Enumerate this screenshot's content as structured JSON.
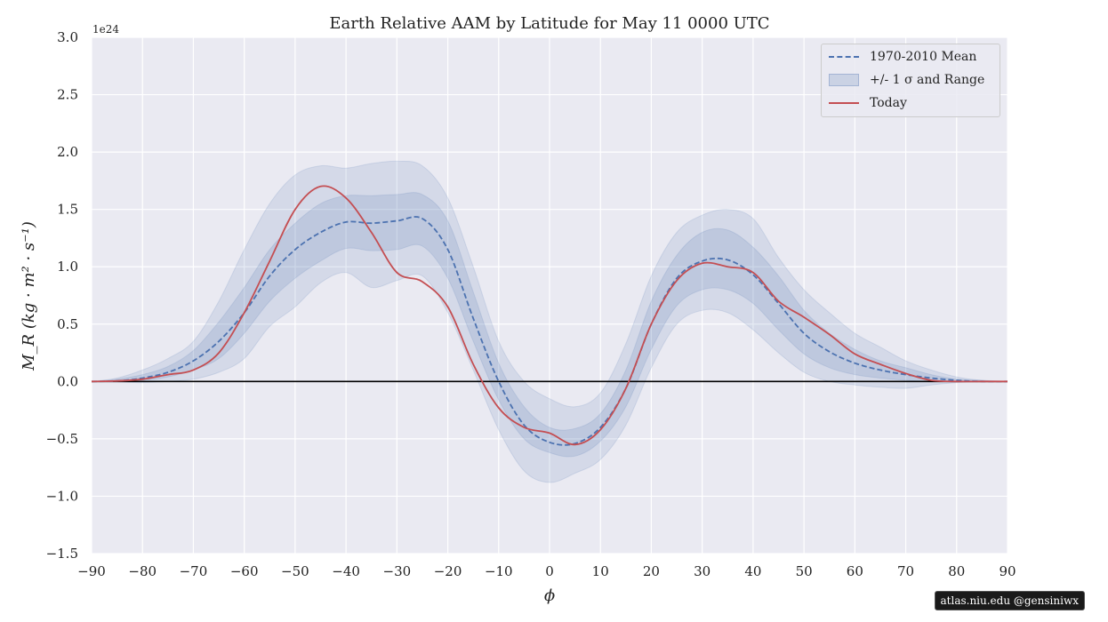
{
  "chart_data": {
    "type": "line",
    "title": "Earth Relative AAM by Latitude for May 11 0000 UTC",
    "xlabel": "ϕ",
    "ylabel": "M_R  (kg · m² · s⁻¹)",
    "y_multiplier": "1e24",
    "xlim": [
      -90,
      90
    ],
    "ylim": [
      -1.5,
      3.0
    ],
    "xticks": [
      "−90",
      "−80",
      "−70",
      "−60",
      "−50",
      "−40",
      "−30",
      "−20",
      "−10",
      "0",
      "10",
      "20",
      "30",
      "40",
      "50",
      "60",
      "70",
      "80",
      "90"
    ],
    "yticks": [
      "−1.5",
      "−1.0",
      "−0.5",
      "0.0",
      "0.5",
      "1.0",
      "1.5",
      "2.0",
      "2.5",
      "3.0"
    ],
    "grid": true,
    "legend_position": "top-right",
    "x": [
      -90,
      -85,
      -80,
      -75,
      -70,
      -65,
      -60,
      -55,
      -50,
      -45,
      -40,
      -35,
      -30,
      -25,
      -20,
      -15,
      -10,
      -5,
      0,
      5,
      10,
      15,
      20,
      25,
      30,
      35,
      40,
      45,
      50,
      55,
      60,
      65,
      70,
      75,
      80,
      85,
      90
    ],
    "series": [
      {
        "name": "1970-2010 Mean",
        "style": "dashed",
        "color": "#4c72b0",
        "values": [
          0.0,
          0.005,
          0.03,
          0.08,
          0.18,
          0.35,
          0.6,
          0.92,
          1.15,
          1.3,
          1.39,
          1.38,
          1.4,
          1.42,
          1.15,
          0.55,
          0.0,
          -0.38,
          -0.53,
          -0.54,
          -0.4,
          -0.06,
          0.5,
          0.9,
          1.05,
          1.06,
          0.93,
          0.68,
          0.42,
          0.26,
          0.16,
          0.1,
          0.06,
          0.03,
          0.01,
          0.0,
          0.0
        ]
      },
      {
        "name": "Today",
        "style": "solid",
        "color": "#c44e52",
        "values": [
          0.0,
          0.005,
          0.02,
          0.06,
          0.1,
          0.25,
          0.6,
          1.05,
          1.5,
          1.7,
          1.6,
          1.3,
          0.95,
          0.87,
          0.65,
          0.15,
          -0.23,
          -0.4,
          -0.45,
          -0.55,
          -0.42,
          -0.06,
          0.5,
          0.88,
          1.03,
          1.0,
          0.95,
          0.7,
          0.56,
          0.41,
          0.24,
          0.15,
          0.07,
          0.01,
          0.0,
          0.0,
          0.0
        ]
      }
    ],
    "bands": [
      {
        "name": "+/- 1 σ and Range",
        "color": "#4c72b0",
        "inner_lower": [
          0.0,
          0.0,
          0.01,
          0.04,
          0.1,
          0.2,
          0.42,
          0.7,
          0.9,
          1.05,
          1.16,
          1.14,
          1.15,
          1.18,
          0.9,
          0.35,
          -0.16,
          -0.5,
          -0.62,
          -0.65,
          -0.52,
          -0.22,
          0.28,
          0.66,
          0.8,
          0.8,
          0.68,
          0.45,
          0.24,
          0.12,
          0.06,
          0.03,
          0.01,
          0.0,
          0.0,
          0.0,
          0.0
        ],
        "inner_upper": [
          0.0,
          0.02,
          0.06,
          0.13,
          0.27,
          0.52,
          0.82,
          1.15,
          1.38,
          1.55,
          1.62,
          1.62,
          1.63,
          1.63,
          1.4,
          0.78,
          0.16,
          -0.22,
          -0.4,
          -0.41,
          -0.28,
          0.1,
          0.7,
          1.1,
          1.3,
          1.32,
          1.17,
          0.92,
          0.62,
          0.42,
          0.28,
          0.18,
          0.12,
          0.06,
          0.02,
          0.01,
          0.0
        ],
        "outer_lower": [
          0.0,
          -0.005,
          -0.01,
          0.0,
          0.02,
          0.08,
          0.2,
          0.48,
          0.65,
          0.86,
          0.95,
          0.82,
          0.88,
          0.92,
          0.6,
          0.1,
          -0.42,
          -0.78,
          -0.88,
          -0.8,
          -0.68,
          -0.38,
          0.12,
          0.5,
          0.62,
          0.6,
          0.45,
          0.25,
          0.08,
          0.0,
          -0.03,
          -0.05,
          -0.06,
          -0.03,
          -0.01,
          0.0,
          0.0
        ],
        "outer_upper": [
          0.0,
          0.03,
          0.1,
          0.2,
          0.35,
          0.7,
          1.15,
          1.55,
          1.8,
          1.88,
          1.86,
          1.9,
          1.92,
          1.88,
          1.6,
          1.0,
          0.35,
          0.0,
          -0.15,
          -0.22,
          -0.1,
          0.33,
          0.92,
          1.3,
          1.45,
          1.5,
          1.42,
          1.08,
          0.8,
          0.6,
          0.42,
          0.3,
          0.18,
          0.1,
          0.04,
          0.01,
          0.0
        ]
      }
    ]
  },
  "legend": {
    "mean_label": "1970-2010 Mean",
    "band_label": "+/- 1 σ and Range",
    "today_label": "Today"
  },
  "credit": "atlas.niu.edu  @gensiniwx"
}
